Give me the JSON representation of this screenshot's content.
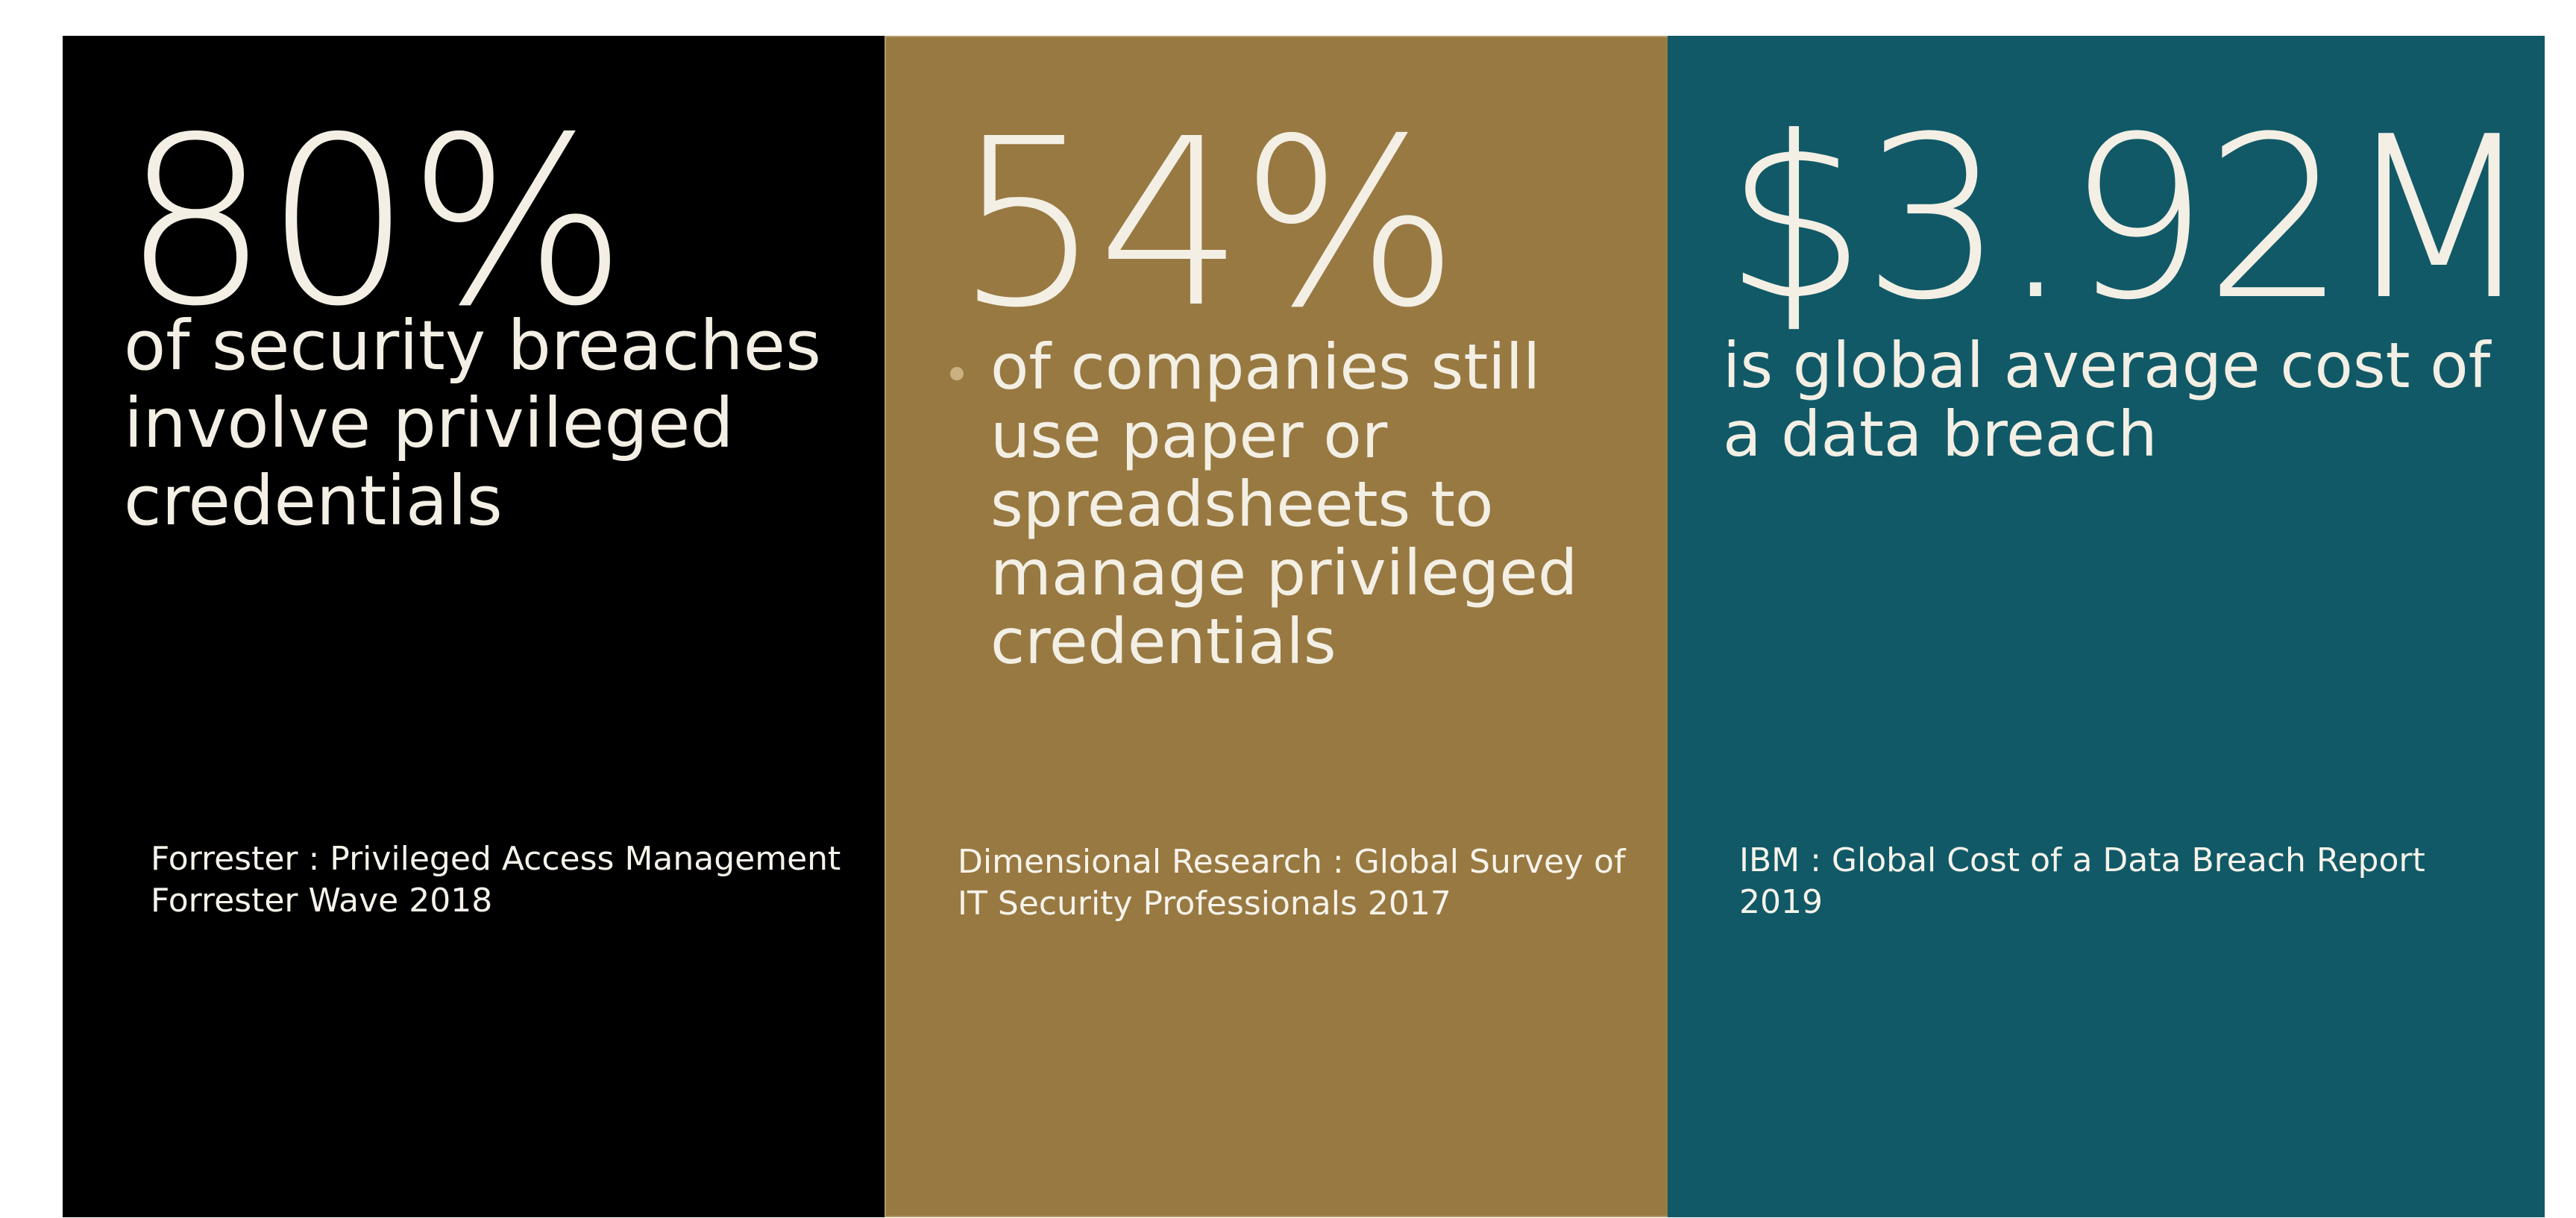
{
  "stats": [
    {
      "value": "80%",
      "description": "of security breaches involve privileged credentials",
      "source": "Forrester : Privileged Access Management Forrester Wave 2018",
      "color": "#000000"
    },
    {
      "value": "54%",
      "description": "of companies still use paper or spreadsheets to manage privileged credentials",
      "source": "Dimensional Research : Global Survey of IT Security Professionals 2017",
      "color": "#987942"
    },
    {
      "value": "$3.92M",
      "description": "is global average cost of a data breach",
      "source": "IBM : Global Cost of a Data Breach Report 2019",
      "color": "#115967"
    }
  ]
}
